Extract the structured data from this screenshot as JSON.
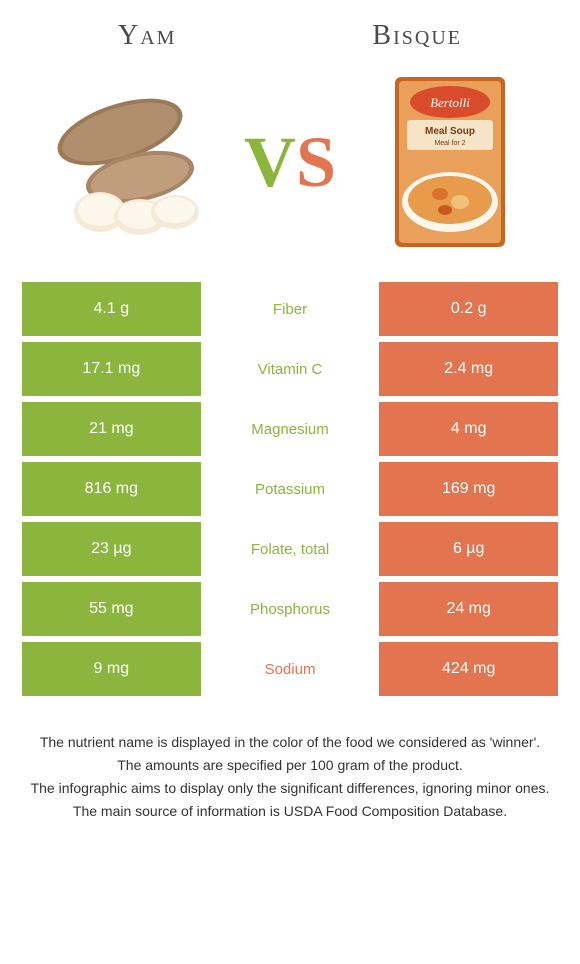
{
  "colors": {
    "left_bg": "#8bb53d",
    "right_bg": "#e2744f",
    "winner_left_text": "#8bb53d",
    "winner_right_text": "#e2744f",
    "title_color": "#4a4a4a",
    "cell_text": "#ffffff"
  },
  "header": {
    "left_title": "Yam",
    "right_title": "Bisque"
  },
  "vs": {
    "v": "V",
    "s": "S"
  },
  "rows": [
    {
      "left": "4.1 g",
      "label": "Fiber",
      "right": "0.2 g",
      "winner": "left"
    },
    {
      "left": "17.1 mg",
      "label": "Vitamin C",
      "right": "2.4 mg",
      "winner": "left"
    },
    {
      "left": "21 mg",
      "label": "Magnesium",
      "right": "4 mg",
      "winner": "left"
    },
    {
      "left": "816 mg",
      "label": "Potassium",
      "right": "169 mg",
      "winner": "left"
    },
    {
      "left": "23 µg",
      "label": "Folate, total",
      "right": "6 µg",
      "winner": "left"
    },
    {
      "left": "55 mg",
      "label": "Phosphorus",
      "right": "24 mg",
      "winner": "left"
    },
    {
      "left": "9 mg",
      "label": "Sodium",
      "right": "424 mg",
      "winner": "right"
    }
  ],
  "footer": {
    "line1": "The nutrient name is displayed in the color of the food we considered as 'winner'.",
    "line2": "The amounts are specified per 100 gram of the product.",
    "line3": "The infographic aims to display only the significant differences, ignoring minor ones.",
    "line4": "The main source of information is USDA Food Composition Database."
  }
}
